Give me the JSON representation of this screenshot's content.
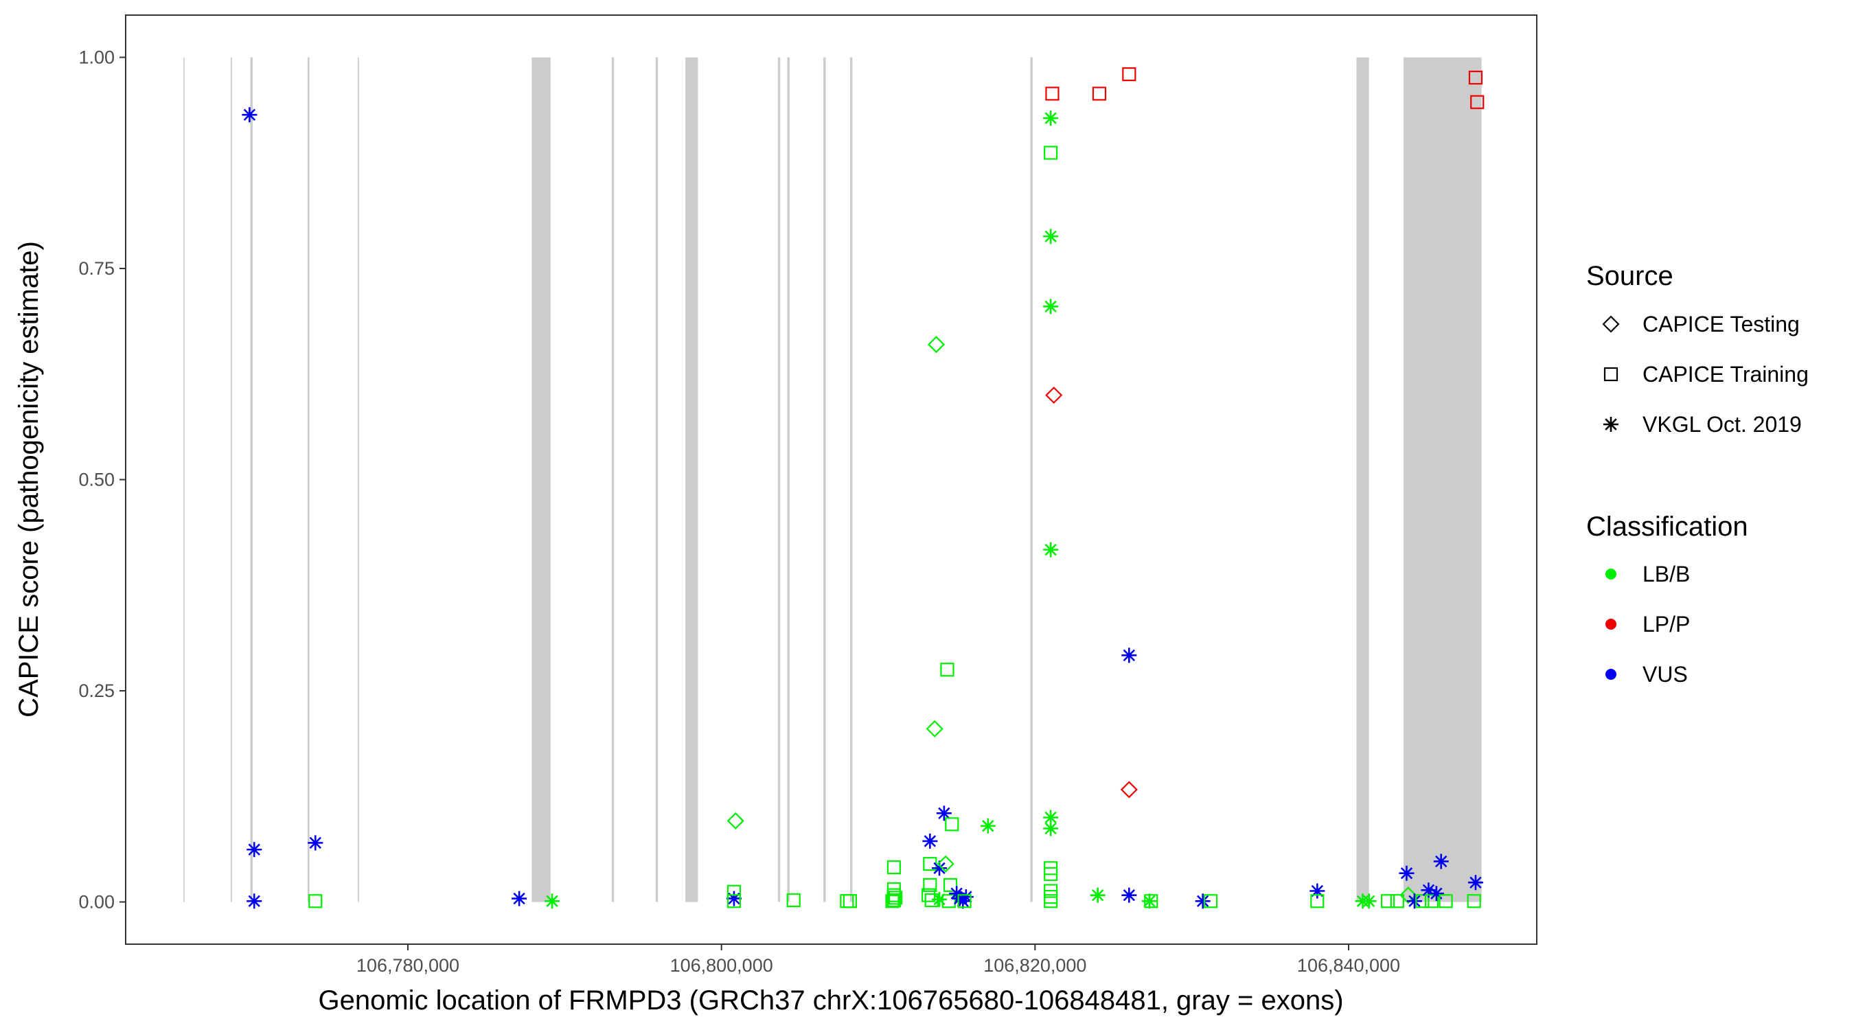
{
  "chart_data": {
    "type": "scatter",
    "title": "",
    "xlabel": "Genomic location of FRMPD3 (GRCh37 chrX:106765680-106848481, gray = exons)",
    "ylabel": "CAPICE score (pathogenicity estimate)",
    "xlim": [
      106762000,
      106852000
    ],
    "ylim": [
      -0.05,
      1.05
    ],
    "x_ticks": [
      106780000,
      106800000,
      106820000,
      106840000
    ],
    "x_tick_labels": [
      "106,780,000",
      "106,800,000",
      "106,820,000",
      "106,840,000"
    ],
    "y_ticks": [
      0,
      0.25,
      0.5,
      0.75,
      1
    ],
    "y_tick_labels": [
      "0.00",
      "0.25",
      "0.50",
      "0.75",
      "1.00"
    ],
    "grid": false,
    "exons": [
      [
        106765680,
        106765740
      ],
      [
        106768700,
        106768780
      ],
      [
        106769950,
        106770100
      ],
      [
        106773600,
        106773720
      ],
      [
        106776800,
        106776880
      ],
      [
        106787900,
        106789100
      ],
      [
        106793000,
        106793150
      ],
      [
        106795800,
        106795950
      ],
      [
        106797700,
        106798500
      ],
      [
        106803600,
        106803750
      ],
      [
        106804200,
        106804350
      ],
      [
        106806500,
        106806650
      ],
      [
        106808200,
        106808350
      ],
      [
        106819700,
        106819850
      ],
      [
        106840500,
        106841300
      ],
      [
        106843500,
        106848481
      ]
    ],
    "legend": {
      "placement": "right",
      "source_title": "Source",
      "source_entries": [
        {
          "label": "CAPICE Testing",
          "shape": "diamond"
        },
        {
          "label": "CAPICE Training",
          "shape": "square"
        },
        {
          "label": "VKGL Oct. 2019",
          "shape": "asterisk"
        }
      ],
      "class_title": "Classification",
      "class_entries": [
        {
          "label": "LB/B",
          "color": "#00ee00"
        },
        {
          "label": "LP/P",
          "color": "#ee0000"
        },
        {
          "label": "VUS",
          "color": "#0000ee"
        }
      ]
    },
    "points": [
      {
        "x": 106769900,
        "y": 0.932,
        "source": "VKGL Oct. 2019",
        "class": "VUS"
      },
      {
        "x": 106770200,
        "y": 0.062,
        "source": "VKGL Oct. 2019",
        "class": "VUS"
      },
      {
        "x": 106770200,
        "y": 0.001,
        "source": "VKGL Oct. 2019",
        "class": "VUS"
      },
      {
        "x": 106774100,
        "y": 0.07,
        "source": "VKGL Oct. 2019",
        "class": "VUS"
      },
      {
        "x": 106774100,
        "y": 0.001,
        "source": "CAPICE Training",
        "class": "LB/B"
      },
      {
        "x": 106787100,
        "y": 0.004,
        "source": "VKGL Oct. 2019",
        "class": "VUS"
      },
      {
        "x": 106789200,
        "y": 0.001,
        "source": "VKGL Oct. 2019",
        "class": "LB/B"
      },
      {
        "x": 106800900,
        "y": 0.096,
        "source": "CAPICE Testing",
        "class": "LB/B"
      },
      {
        "x": 106800800,
        "y": 0.012,
        "source": "CAPICE Training",
        "class": "LB/B"
      },
      {
        "x": 106800800,
        "y": 0.004,
        "source": "VKGL Oct. 2019",
        "class": "VUS"
      },
      {
        "x": 106800800,
        "y": 0.001,
        "source": "CAPICE Training",
        "class": "LB/B"
      },
      {
        "x": 106804600,
        "y": 0.002,
        "source": "CAPICE Training",
        "class": "LB/B"
      },
      {
        "x": 106808000,
        "y": 0.001,
        "source": "CAPICE Training",
        "class": "LB/B"
      },
      {
        "x": 106808200,
        "y": 0.001,
        "source": "CAPICE Training",
        "class": "LB/B"
      },
      {
        "x": 106811000,
        "y": 0.041,
        "source": "CAPICE Training",
        "class": "LB/B"
      },
      {
        "x": 106811000,
        "y": 0.015,
        "source": "CAPICE Training",
        "class": "LB/B"
      },
      {
        "x": 106811000,
        "y": 0.008,
        "source": "CAPICE Training",
        "class": "LB/B"
      },
      {
        "x": 106811000,
        "y": 0.002,
        "source": "CAPICE Training",
        "class": "LB/B"
      },
      {
        "x": 106810900,
        "y": 0.001,
        "source": "CAPICE Training",
        "class": "LB/B"
      },
      {
        "x": 106811100,
        "y": 0.005,
        "source": "CAPICE Training",
        "class": "LB/B"
      },
      {
        "x": 106813300,
        "y": 0.072,
        "source": "VKGL Oct. 2019",
        "class": "VUS"
      },
      {
        "x": 106813300,
        "y": 0.045,
        "source": "CAPICE Training",
        "class": "LB/B"
      },
      {
        "x": 106813300,
        "y": 0.02,
        "source": "CAPICE Training",
        "class": "LB/B"
      },
      {
        "x": 106813200,
        "y": 0.008,
        "source": "CAPICE Training",
        "class": "LB/B"
      },
      {
        "x": 106813400,
        "y": 0.002,
        "source": "CAPICE Training",
        "class": "LB/B"
      },
      {
        "x": 106813600,
        "y": 0.205,
        "source": "CAPICE Testing",
        "class": "LB/B"
      },
      {
        "x": 106813700,
        "y": 0.66,
        "source": "CAPICE Testing",
        "class": "LB/B"
      },
      {
        "x": 106813900,
        "y": 0.04,
        "source": "VKGL Oct. 2019",
        "class": "VUS"
      },
      {
        "x": 106813900,
        "y": 0.003,
        "source": "VKGL Oct. 2019",
        "class": "LB/B"
      },
      {
        "x": 106814200,
        "y": 0.105,
        "source": "VKGL Oct. 2019",
        "class": "VUS"
      },
      {
        "x": 106814300,
        "y": 0.045,
        "source": "CAPICE Testing",
        "class": "LB/B"
      },
      {
        "x": 106814400,
        "y": 0.275,
        "source": "CAPICE Training",
        "class": "LB/B"
      },
      {
        "x": 106814600,
        "y": 0.02,
        "source": "CAPICE Training",
        "class": "LB/B"
      },
      {
        "x": 106814700,
        "y": 0.092,
        "source": "CAPICE Training",
        "class": "LB/B"
      },
      {
        "x": 106814500,
        "y": 0.001,
        "source": "CAPICE Training",
        "class": "LB/B"
      },
      {
        "x": 106815000,
        "y": 0.01,
        "source": "VKGL Oct. 2019",
        "class": "VUS"
      },
      {
        "x": 106815200,
        "y": 0.004,
        "source": "VKGL Oct. 2019",
        "class": "VUS"
      },
      {
        "x": 106815400,
        "y": 0.001,
        "source": "VKGL Oct. 2019",
        "class": "VUS"
      },
      {
        "x": 106815600,
        "y": 0.006,
        "source": "VKGL Oct. 2019",
        "class": "VUS"
      },
      {
        "x": 106815500,
        "y": 0.001,
        "source": "CAPICE Training",
        "class": "LB/B"
      },
      {
        "x": 106817000,
        "y": 0.09,
        "source": "VKGL Oct. 2019",
        "class": "LB/B"
      },
      {
        "x": 106821100,
        "y": 0.957,
        "source": "CAPICE Training",
        "class": "LP/P"
      },
      {
        "x": 106821000,
        "y": 0.928,
        "source": "VKGL Oct. 2019",
        "class": "LB/B"
      },
      {
        "x": 106821000,
        "y": 0.887,
        "source": "CAPICE Training",
        "class": "LB/B"
      },
      {
        "x": 106821000,
        "y": 0.788,
        "source": "VKGL Oct. 2019",
        "class": "LB/B"
      },
      {
        "x": 106821000,
        "y": 0.705,
        "source": "VKGL Oct. 2019",
        "class": "LB/B"
      },
      {
        "x": 106821200,
        "y": 0.6,
        "source": "CAPICE Testing",
        "class": "LP/P"
      },
      {
        "x": 106821000,
        "y": 0.417,
        "source": "VKGL Oct. 2019",
        "class": "LB/B"
      },
      {
        "x": 106821000,
        "y": 0.1,
        "source": "VKGL Oct. 2019",
        "class": "LB/B"
      },
      {
        "x": 106821000,
        "y": 0.087,
        "source": "VKGL Oct. 2019",
        "class": "LB/B"
      },
      {
        "x": 106821000,
        "y": 0.04,
        "source": "CAPICE Training",
        "class": "LB/B"
      },
      {
        "x": 106821000,
        "y": 0.033,
        "source": "CAPICE Training",
        "class": "LB/B"
      },
      {
        "x": 106821000,
        "y": 0.013,
        "source": "CAPICE Training",
        "class": "LB/B"
      },
      {
        "x": 106821000,
        "y": 0.006,
        "source": "CAPICE Training",
        "class": "LB/B"
      },
      {
        "x": 106821000,
        "y": 0.001,
        "source": "CAPICE Training",
        "class": "LB/B"
      },
      {
        "x": 106824100,
        "y": 0.957,
        "source": "CAPICE Training",
        "class": "LP/P"
      },
      {
        "x": 106824000,
        "y": 0.008,
        "source": "VKGL Oct. 2019",
        "class": "LB/B"
      },
      {
        "x": 106826000,
        "y": 0.98,
        "source": "CAPICE Training",
        "class": "LP/P"
      },
      {
        "x": 106826000,
        "y": 0.292,
        "source": "VKGL Oct. 2019",
        "class": "VUS"
      },
      {
        "x": 106826000,
        "y": 0.133,
        "source": "CAPICE Testing",
        "class": "LP/P"
      },
      {
        "x": 106826000,
        "y": 0.008,
        "source": "VKGL Oct. 2019",
        "class": "VUS"
      },
      {
        "x": 106827300,
        "y": 0.001,
        "source": "VKGL Oct. 2019",
        "class": "LB/B"
      },
      {
        "x": 106827400,
        "y": 0.001,
        "source": "CAPICE Training",
        "class": "LB/B"
      },
      {
        "x": 106830700,
        "y": 0.001,
        "source": "VKGL Oct. 2019",
        "class": "VUS"
      },
      {
        "x": 106831200,
        "y": 0.001,
        "source": "CAPICE Training",
        "class": "LB/B"
      },
      {
        "x": 106838000,
        "y": 0.013,
        "source": "VKGL Oct. 2019",
        "class": "VUS"
      },
      {
        "x": 106838000,
        "y": 0.001,
        "source": "CAPICE Training",
        "class": "LB/B"
      },
      {
        "x": 106840900,
        "y": 0.001,
        "source": "VKGL Oct. 2019",
        "class": "LB/B"
      },
      {
        "x": 106841300,
        "y": 0.001,
        "source": "VKGL Oct. 2019",
        "class": "LB/B"
      },
      {
        "x": 106842500,
        "y": 0.001,
        "source": "CAPICE Training",
        "class": "LB/B"
      },
      {
        "x": 106843100,
        "y": 0.001,
        "source": "CAPICE Training",
        "class": "LB/B"
      },
      {
        "x": 106843700,
        "y": 0.034,
        "source": "VKGL Oct. 2019",
        "class": "VUS"
      },
      {
        "x": 106843800,
        "y": 0.008,
        "source": "CAPICE Testing",
        "class": "LB/B"
      },
      {
        "x": 106844200,
        "y": 0.001,
        "source": "VKGL Oct. 2019",
        "class": "VUS"
      },
      {
        "x": 106844700,
        "y": 0.001,
        "source": "CAPICE Training",
        "class": "LB/B"
      },
      {
        "x": 106845100,
        "y": 0.014,
        "source": "VKGL Oct. 2019",
        "class": "VUS"
      },
      {
        "x": 106845300,
        "y": 0.001,
        "source": "CAPICE Training",
        "class": "LB/B"
      },
      {
        "x": 106845600,
        "y": 0.01,
        "source": "VKGL Oct. 2019",
        "class": "VUS"
      },
      {
        "x": 106845900,
        "y": 0.048,
        "source": "VKGL Oct. 2019",
        "class": "VUS"
      },
      {
        "x": 106846200,
        "y": 0.001,
        "source": "CAPICE Training",
        "class": "LB/B"
      },
      {
        "x": 106848100,
        "y": 0.976,
        "source": "CAPICE Training",
        "class": "LP/P"
      },
      {
        "x": 106848200,
        "y": 0.947,
        "source": "CAPICE Training",
        "class": "LP/P"
      },
      {
        "x": 106848100,
        "y": 0.023,
        "source": "VKGL Oct. 2019",
        "class": "VUS"
      },
      {
        "x": 106848000,
        "y": 0.001,
        "source": "CAPICE Training",
        "class": "LB/B"
      }
    ]
  }
}
